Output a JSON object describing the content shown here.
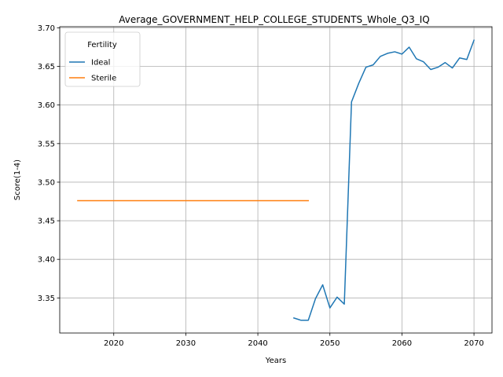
{
  "chart_data": {
    "type": "line",
    "title": "Average_GOVERNMENT_HELP_COLLEGE_STUDENTS_Whole_Q3_IQ",
    "xlabel": "Years",
    "ylabel": "Score(1-4)",
    "xlim": [
      2012.5,
      2072.5
    ],
    "ylim": [
      3.3045,
      3.7015
    ],
    "x_ticks": [
      2020,
      2030,
      2040,
      2050,
      2060,
      2070
    ],
    "x_tick_labels": [
      "2020",
      "2030",
      "2040",
      "2050",
      "2060",
      "2070"
    ],
    "y_ticks": [
      3.35,
      3.4,
      3.45,
      3.5,
      3.55,
      3.6,
      3.65,
      3.7
    ],
    "y_tick_labels": [
      "3.35",
      "3.40",
      "3.45",
      "3.50",
      "3.55",
      "3.60",
      "3.65",
      "3.70"
    ],
    "grid": true,
    "legend": {
      "title": "Fertility",
      "position": "upper-left"
    },
    "series": [
      {
        "name": "Ideal",
        "color": "#1f77b4",
        "x": [
          2045,
          2046,
          2047,
          2048,
          2049,
          2050,
          2051,
          2052,
          2053,
          2054,
          2055,
          2056,
          2057,
          2058,
          2059,
          2060,
          2061,
          2062,
          2063,
          2064,
          2065,
          2066,
          2067,
          2068,
          2069,
          2070
        ],
        "y": [
          3.324,
          3.321,
          3.321,
          3.349,
          3.367,
          3.337,
          3.351,
          3.342,
          3.604,
          3.628,
          3.649,
          3.652,
          3.663,
          3.667,
          3.669,
          3.666,
          3.675,
          3.66,
          3.656,
          3.646,
          3.649,
          3.655,
          3.648,
          3.661,
          3.659,
          3.684
        ]
      },
      {
        "name": "Sterile",
        "color": "#ff7f0e",
        "x": [
          2015,
          2016,
          2017,
          2018,
          2019,
          2020,
          2021,
          2022,
          2023,
          2024,
          2025,
          2026,
          2027,
          2028,
          2029,
          2030,
          2031,
          2032,
          2033,
          2034,
          2035,
          2036,
          2037,
          2038,
          2039,
          2040,
          2041,
          2042,
          2043,
          2044,
          2045,
          2046,
          2047
        ],
        "y": [
          3.476,
          3.476,
          3.476,
          3.476,
          3.476,
          3.476,
          3.476,
          3.476,
          3.476,
          3.476,
          3.476,
          3.476,
          3.476,
          3.476,
          3.476,
          3.476,
          3.476,
          3.476,
          3.476,
          3.476,
          3.476,
          3.476,
          3.476,
          3.476,
          3.476,
          3.476,
          3.476,
          3.476,
          3.476,
          3.476,
          3.476,
          3.476,
          3.476
        ]
      }
    ]
  }
}
